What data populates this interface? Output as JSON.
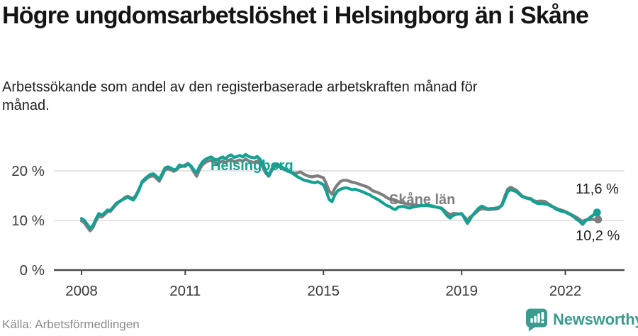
{
  "header": {
    "title": "Högre ungdomsarbetslöshet i Helsingborg än i Skåne",
    "subtitle": "Arbetssökande som andel av den registerbaserade arbetskraften månad för månad."
  },
  "footer": {
    "source": "Källa: Arbetsförmedlingen",
    "brand": "Newsworthy"
  },
  "colors": {
    "helsingborg": "#14a092",
    "skane": "#7e7e7e",
    "grid": "#dcdcdc",
    "axis": "#4a4a4a",
    "tick_text": "#3a3a3a",
    "logo_teal": "#3d9a8e"
  },
  "chart_data": {
    "type": "line",
    "title": "Högre ungdomsarbetslöshet i Helsingborg än i Skåne",
    "subtitle": "Arbetssökande som andel av den registerbaserade arbetskraften månad för månad.",
    "source": "Källa: Arbetsförmedlingen",
    "unit": "%",
    "x_start": 2008.0,
    "x_step_months": 1,
    "xlim": [
      2007.2,
      2023.7
    ],
    "ylim": [
      0,
      25
    ],
    "grid": "horizontal-only",
    "x_ticks": [
      2008,
      2011,
      2015,
      2019,
      2022
    ],
    "x_tick_labels": [
      "2008",
      "2011",
      "2015",
      "2019",
      "2022"
    ],
    "y_ticks": [
      0,
      10,
      20
    ],
    "y_tick_labels": [
      "0 %",
      "10 %",
      "20 %"
    ],
    "legend_position": "inline-labels",
    "series": [
      {
        "id": "skane",
        "name": "Skåne län",
        "color": "#7e7e7e",
        "end_label": "10,2 %",
        "end_value": 10.2,
        "values": [
          9.9,
          9.5,
          8.7,
          7.9,
          8.6,
          9.9,
          10.9,
          10.7,
          11.2,
          11.8,
          11.8,
          12.5,
          13.2,
          13.7,
          14.1,
          14.6,
          14.9,
          14.6,
          14.4,
          15.2,
          16.4,
          17.6,
          18.1,
          18.6,
          18.9,
          19.0,
          18.5,
          17.9,
          19.0,
          20.2,
          20.4,
          20.2,
          19.9,
          20.2,
          20.8,
          20.9,
          21.2,
          21.5,
          20.8,
          19.8,
          18.9,
          20.3,
          21.2,
          21.7,
          22.0,
          22.1,
          21.8,
          21.5,
          21.7,
          22.0,
          21.6,
          22.1,
          22.3,
          21.8,
          22.0,
          22.2,
          21.9,
          22.4,
          22.0,
          21.8,
          21.7,
          22.0,
          21.5,
          20.7,
          19.5,
          18.9,
          20.0,
          20.8,
          21.0,
          20.7,
          20.4,
          20.1,
          19.9,
          19.7,
          19.5,
          19.6,
          19.8,
          19.4,
          19.1,
          18.9,
          18.8,
          18.9,
          19.0,
          18.8,
          18.6,
          17.4,
          15.9,
          15.3,
          16.5,
          17.3,
          17.9,
          18.1,
          18.1,
          17.9,
          17.7,
          17.6,
          17.4,
          17.2,
          17.0,
          16.8,
          16.5,
          16.0,
          15.8,
          15.6,
          15.3,
          15.0,
          14.6,
          14.3,
          14.1,
          13.9,
          13.8,
          13.6,
          13.5,
          13.3,
          13.2,
          13.1,
          13.1,
          13.0,
          13.0,
          13.0,
          13.0,
          12.9,
          12.8,
          12.7,
          12.6,
          12.5,
          12.0,
          11.5,
          11.2,
          11.4,
          11.4,
          11.3,
          11.3,
          10.7,
          10.1,
          10.7,
          11.1,
          11.6,
          12.1,
          12.4,
          12.3,
          12.2,
          12.2,
          12.3,
          12.3,
          12.5,
          13.2,
          14.9,
          16.3,
          16.7,
          16.4,
          16.1,
          15.5,
          14.9,
          14.7,
          14.5,
          14.4,
          14.0,
          13.8,
          13.9,
          13.9,
          13.8,
          13.4,
          13.0,
          12.7,
          12.4,
          12.2,
          12.0,
          11.8,
          11.5,
          11.2,
          10.9,
          10.6,
          10.2,
          9.8,
          10.1,
          10.2,
          10.2,
          10.2,
          10.2
        ]
      },
      {
        "id": "helsingborg",
        "name": "Helsingborg",
        "color": "#14a092",
        "end_label": "11,6 %",
        "end_value": 11.6,
        "values": [
          10.4,
          10.0,
          9.2,
          8.4,
          9.0,
          10.3,
          11.4,
          11.1,
          11.5,
          12.1,
          12.0,
          12.7,
          13.4,
          13.8,
          14.1,
          14.4,
          14.7,
          14.4,
          14.1,
          15.0,
          16.2,
          17.8,
          18.4,
          18.9,
          19.3,
          19.4,
          18.9,
          18.3,
          19.4,
          20.6,
          20.8,
          20.6,
          20.2,
          20.4,
          21.2,
          21.0,
          20.9,
          21.4,
          21.0,
          20.2,
          19.6,
          20.9,
          21.8,
          22.3,
          22.6,
          22.8,
          22.4,
          22.2,
          22.5,
          22.8,
          22.4,
          23.0,
          23.2,
          22.7,
          22.9,
          23.1,
          22.8,
          23.3,
          22.9,
          22.7,
          22.6,
          22.9,
          22.3,
          21.4,
          19.9,
          19.0,
          20.3,
          21.2,
          21.4,
          21.0,
          20.6,
          20.2,
          19.9,
          19.6,
          19.2,
          18.8,
          18.5,
          18.2,
          18.0,
          17.9,
          17.7,
          17.6,
          17.8,
          17.5,
          17.2,
          15.9,
          14.2,
          13.8,
          15.2,
          16.0,
          16.3,
          16.5,
          16.6,
          16.4,
          16.2,
          16.3,
          16.1,
          15.9,
          15.7,
          15.4,
          15.2,
          14.8,
          14.5,
          14.2,
          13.8,
          13.4,
          13.0,
          12.8,
          12.4,
          12.2,
          12.7,
          12.8,
          12.8,
          12.6,
          12.5,
          12.7,
          12.8,
          12.9,
          13.0,
          13.0,
          13.1,
          13.0,
          12.9,
          12.7,
          12.6,
          12.4,
          11.7,
          10.9,
          10.5,
          11.0,
          11.2,
          11.3,
          11.4,
          10.4,
          9.4,
          10.3,
          11.2,
          11.9,
          12.5,
          12.9,
          12.6,
          12.3,
          12.4,
          12.4,
          12.5,
          12.7,
          13.0,
          14.4,
          15.8,
          16.2,
          16.0,
          15.8,
          15.3,
          14.8,
          14.6,
          14.4,
          14.3,
          13.8,
          13.5,
          13.4,
          13.4,
          13.3,
          13.2,
          12.9,
          12.6,
          12.2,
          12.0,
          11.8,
          11.7,
          11.4,
          11.1,
          10.7,
          10.2,
          9.8,
          9.2,
          9.9,
          10.3,
          10.8,
          11.2,
          11.6
        ]
      }
    ]
  }
}
